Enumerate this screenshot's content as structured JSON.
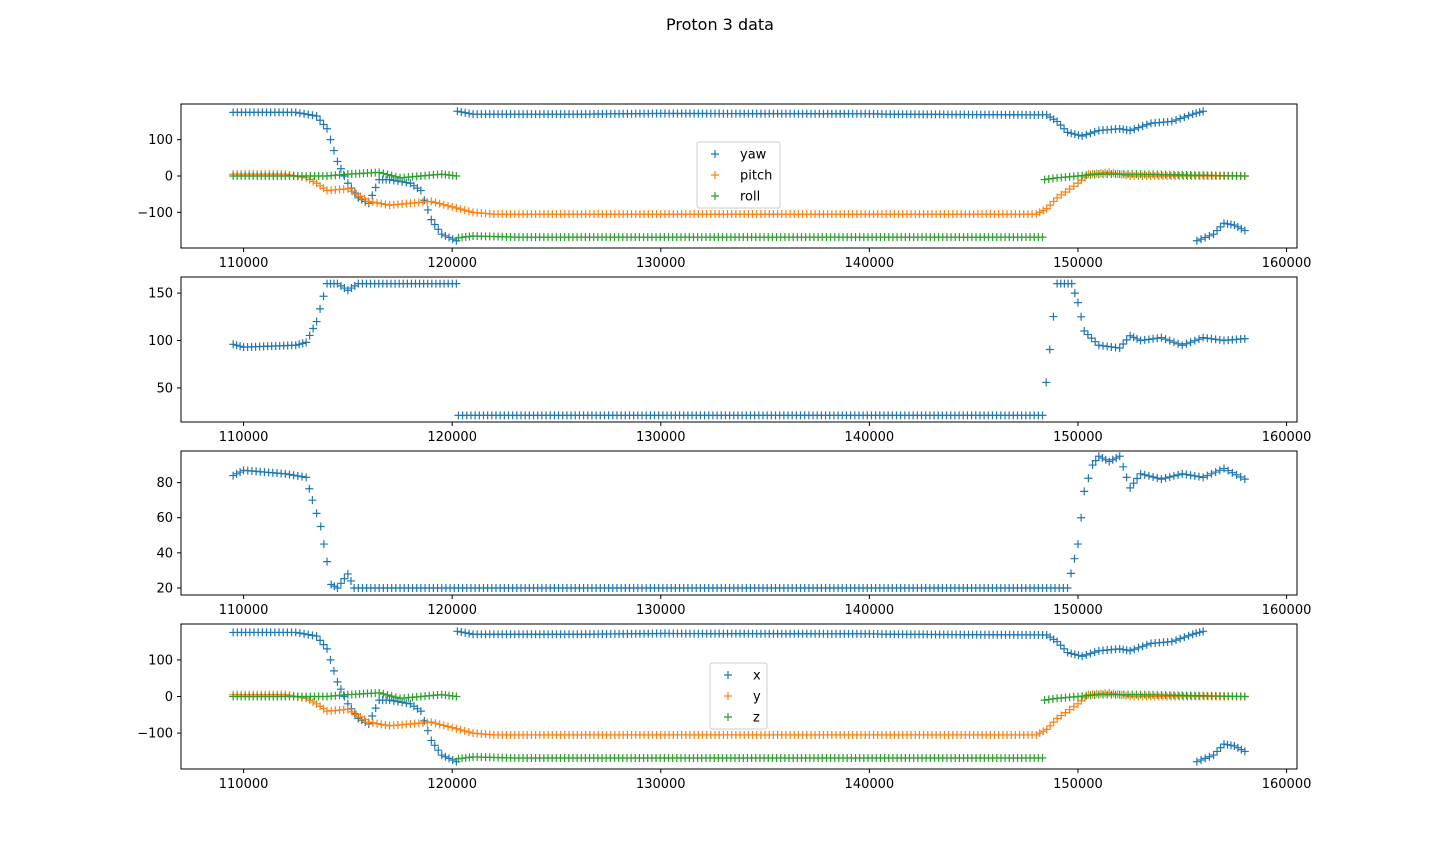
{
  "figure": {
    "title": "Proton 3 data"
  },
  "chart_data": [
    {
      "type": "scatter",
      "title": "",
      "xlabel": "",
      "ylabel": "",
      "xlim": [
        107000,
        160500
      ],
      "ylim": [
        -198,
        198
      ],
      "xticks": [
        110000,
        120000,
        130000,
        140000,
        150000,
        160000
      ],
      "yticks": [
        -100,
        0,
        100
      ],
      "grid": false,
      "marker": "+",
      "legend": {
        "position": "center",
        "entries": [
          "yaw",
          "pitch",
          "roll"
        ]
      },
      "series": [
        {
          "name": "yaw",
          "color": "#1f77b4",
          "points": [
            [
              109500,
              175
            ],
            [
              112500,
              175
            ],
            [
              113500,
              165
            ],
            [
              114000,
              130
            ],
            [
              114500,
              40
            ],
            [
              115000,
              -20
            ],
            [
              115500,
              -60
            ],
            [
              116000,
              -75
            ],
            [
              116500,
              -10
            ],
            [
              117000,
              -10
            ],
            [
              118000,
              -20
            ],
            [
              118500,
              -40
            ],
            [
              119000,
              -120
            ],
            [
              119500,
              -160
            ],
            [
              120200,
              -178
            ],
            [
              120250,
              178
            ],
            [
              121000,
              170
            ],
            [
              126000,
              170
            ],
            [
              130000,
              172
            ],
            [
              140000,
              171
            ],
            [
              141000,
              170
            ],
            [
              148500,
              168
            ],
            [
              149000,
              150
            ],
            [
              149500,
              120
            ],
            [
              150200,
              110
            ],
            [
              151000,
              125
            ],
            [
              152000,
              130
            ],
            [
              152500,
              125
            ],
            [
              153500,
              145
            ],
            [
              154500,
              150
            ],
            [
              155500,
              170
            ],
            [
              156000,
              178
            ],
            [
              155700,
              -178
            ],
            [
              156500,
              -160
            ],
            [
              157000,
              -130
            ],
            [
              157500,
              -135
            ],
            [
              158000,
              -150
            ]
          ]
        },
        {
          "name": "pitch",
          "color": "#ff7f0e",
          "points": [
            [
              109500,
              5
            ],
            [
              112000,
              5
            ],
            [
              113000,
              -5
            ],
            [
              113500,
              -20
            ],
            [
              114000,
              -40
            ],
            [
              115000,
              -35
            ],
            [
              116000,
              -70
            ],
            [
              117000,
              -80
            ],
            [
              118000,
              -75
            ],
            [
              119000,
              -70
            ],
            [
              120000,
              -85
            ],
            [
              121000,
              -100
            ],
            [
              122000,
              -105
            ],
            [
              148000,
              -105
            ],
            [
              148500,
              -90
            ],
            [
              149000,
              -60
            ],
            [
              150000,
              -20
            ],
            [
              150500,
              5
            ],
            [
              151500,
              10
            ],
            [
              152500,
              0
            ],
            [
              158000,
              0
            ]
          ]
        },
        {
          "name": "roll",
          "color": "#2ca02c",
          "points": [
            [
              109500,
              0
            ],
            [
              112000,
              0
            ],
            [
              114000,
              0
            ],
            [
              115000,
              5
            ],
            [
              116500,
              10
            ],
            [
              117500,
              -5
            ],
            [
              118500,
              0
            ],
            [
              119500,
              5
            ],
            [
              120200,
              0
            ],
            [
              120300,
              -170
            ],
            [
              121000,
              -165
            ],
            [
              123000,
              -168
            ],
            [
              148300,
              -168
            ],
            [
              148400,
              -10
            ],
            [
              149000,
              -5
            ],
            [
              150000,
              0
            ],
            [
              151000,
              5
            ],
            [
              153000,
              5
            ],
            [
              158000,
              0
            ]
          ]
        }
      ]
    },
    {
      "type": "scatter",
      "title": "",
      "xlabel": "",
      "ylabel": "",
      "xlim": [
        107000,
        160500
      ],
      "ylim": [
        14,
        167
      ],
      "xticks": [
        110000,
        120000,
        130000,
        140000,
        150000,
        160000
      ],
      "yticks": [
        50,
        100,
        150
      ],
      "grid": false,
      "marker": "+",
      "series": [
        {
          "color": "#1f77b4",
          "points": [
            [
              109500,
              96
            ],
            [
              110000,
              93
            ],
            [
              112500,
              95
            ],
            [
              113000,
              98
            ],
            [
              113500,
              120
            ],
            [
              114000,
              160
            ],
            [
              114500,
              160
            ],
            [
              115000,
              153
            ],
            [
              115500,
              160
            ],
            [
              120200,
              160
            ],
            [
              120300,
              21
            ],
            [
              148300,
              21
            ],
            [
              149000,
              160
            ],
            [
              149700,
              160
            ],
            [
              150000,
              140
            ],
            [
              150300,
              110
            ],
            [
              151000,
              95
            ],
            [
              152000,
              92
            ],
            [
              152500,
              105
            ],
            [
              153000,
              100
            ],
            [
              154000,
              103
            ],
            [
              155000,
              95
            ],
            [
              156000,
              103
            ],
            [
              157000,
              100
            ],
            [
              158000,
              102
            ]
          ]
        }
      ]
    },
    {
      "type": "scatter",
      "title": "",
      "xlabel": "",
      "ylabel": "",
      "xlim": [
        107000,
        160500
      ],
      "ylim": [
        16,
        98
      ],
      "xticks": [
        110000,
        120000,
        130000,
        140000,
        150000,
        160000
      ],
      "yticks": [
        20,
        40,
        60,
        80
      ],
      "grid": false,
      "marker": "+",
      "series": [
        {
          "color": "#1f77b4",
          "points": [
            [
              109500,
              84
            ],
            [
              110000,
              87
            ],
            [
              112000,
              85
            ],
            [
              113000,
              83
            ],
            [
              113300,
              70
            ],
            [
              113700,
              55
            ],
            [
              114000,
              35
            ],
            [
              114200,
              22
            ],
            [
              114500,
              20
            ],
            [
              115000,
              28
            ],
            [
              115300,
              20
            ],
            [
              149500,
              20
            ],
            [
              150000,
              45
            ],
            [
              150300,
              75
            ],
            [
              150700,
              90
            ],
            [
              151000,
              95
            ],
            [
              151500,
              92
            ],
            [
              152000,
              95
            ],
            [
              152500,
              77
            ],
            [
              153000,
              85
            ],
            [
              154000,
              82
            ],
            [
              155000,
              85
            ],
            [
              156000,
              83
            ],
            [
              157000,
              88
            ],
            [
              158000,
              82
            ]
          ]
        }
      ]
    },
    {
      "type": "scatter",
      "title": "",
      "xlabel": "",
      "ylabel": "",
      "xlim": [
        107000,
        160500
      ],
      "ylim": [
        -198,
        198
      ],
      "xticks": [
        110000,
        120000,
        130000,
        140000,
        150000,
        160000
      ],
      "yticks": [
        -100,
        0,
        100
      ],
      "grid": false,
      "marker": "+",
      "legend": {
        "position": "center",
        "entries": [
          "x",
          "y",
          "z"
        ]
      },
      "series": [
        {
          "name": "x",
          "color": "#1f77b4",
          "points": [
            [
              109500,
              175
            ],
            [
              112500,
              175
            ],
            [
              113500,
              165
            ],
            [
              114000,
              130
            ],
            [
              114500,
              40
            ],
            [
              115000,
              -20
            ],
            [
              115500,
              -60
            ],
            [
              116000,
              -75
            ],
            [
              116500,
              -10
            ],
            [
              117000,
              -10
            ],
            [
              118000,
              -20
            ],
            [
              118500,
              -40
            ],
            [
              119000,
              -120
            ],
            [
              119500,
              -160
            ],
            [
              120200,
              -178
            ],
            [
              120250,
              178
            ],
            [
              121000,
              170
            ],
            [
              126000,
              170
            ],
            [
              130000,
              172
            ],
            [
              140000,
              171
            ],
            [
              141000,
              170
            ],
            [
              148500,
              168
            ],
            [
              149000,
              150
            ],
            [
              149500,
              120
            ],
            [
              150200,
              110
            ],
            [
              151000,
              125
            ],
            [
              152000,
              130
            ],
            [
              152500,
              125
            ],
            [
              153500,
              145
            ],
            [
              154500,
              150
            ],
            [
              155500,
              170
            ],
            [
              156000,
              178
            ],
            [
              155700,
              -178
            ],
            [
              156500,
              -160
            ],
            [
              157000,
              -130
            ],
            [
              157500,
              -135
            ],
            [
              158000,
              -150
            ]
          ]
        },
        {
          "name": "y",
          "color": "#ff7f0e",
          "points": [
            [
              109500,
              5
            ],
            [
              112000,
              5
            ],
            [
              113000,
              -5
            ],
            [
              113500,
              -20
            ],
            [
              114000,
              -40
            ],
            [
              115000,
              -35
            ],
            [
              116000,
              -70
            ],
            [
              117000,
              -80
            ],
            [
              118000,
              -75
            ],
            [
              119000,
              -70
            ],
            [
              120000,
              -85
            ],
            [
              121000,
              -100
            ],
            [
              122000,
              -105
            ],
            [
              148000,
              -105
            ],
            [
              148500,
              -90
            ],
            [
              149000,
              -60
            ],
            [
              150000,
              -20
            ],
            [
              150500,
              5
            ],
            [
              151500,
              10
            ],
            [
              152500,
              0
            ],
            [
              158000,
              0
            ]
          ]
        },
        {
          "name": "z",
          "color": "#2ca02c",
          "points": [
            [
              109500,
              0
            ],
            [
              112000,
              0
            ],
            [
              114000,
              0
            ],
            [
              115000,
              5
            ],
            [
              116500,
              10
            ],
            [
              117500,
              -5
            ],
            [
              118500,
              0
            ],
            [
              119500,
              5
            ],
            [
              120200,
              0
            ],
            [
              120300,
              -170
            ],
            [
              121000,
              -165
            ],
            [
              123000,
              -168
            ],
            [
              148300,
              -168
            ],
            [
              148400,
              -10
            ],
            [
              149000,
              -5
            ],
            [
              150000,
              0
            ],
            [
              151000,
              5
            ],
            [
              153000,
              5
            ],
            [
              158000,
              0
            ]
          ]
        }
      ]
    }
  ]
}
